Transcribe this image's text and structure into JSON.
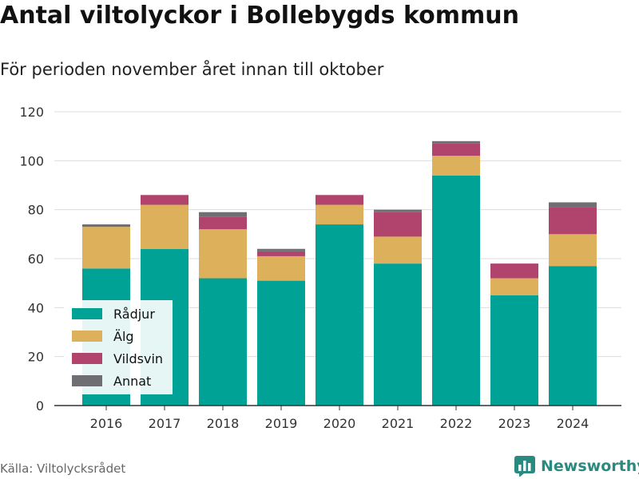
{
  "title": "Antal viltolyckor i Bollebygds kommun",
  "subtitle": "För perioden november året innan till oktober",
  "source": "Källa: Viltolycksrådet",
  "brand": {
    "name": "Newsworthy",
    "icon": "bar-chart-logo-icon"
  },
  "colors": {
    "Rådjur": "#00a296",
    "Älg": "#ddb05c",
    "Vildsvin": "#b0446d",
    "Annat": "#6e6e73"
  },
  "chart_data": {
    "type": "bar",
    "stacked": true,
    "categories": [
      "2016",
      "2017",
      "2018",
      "2019",
      "2020",
      "2021",
      "2022",
      "2023",
      "2024"
    ],
    "series": [
      {
        "name": "Rådjur",
        "values": [
          56,
          64,
          52,
          51,
          74,
          58,
          94,
          45,
          57
        ]
      },
      {
        "name": "Älg",
        "values": [
          17,
          18,
          20,
          10,
          8,
          11,
          8,
          7,
          13
        ]
      },
      {
        "name": "Vildsvin",
        "values": [
          0,
          4,
          5,
          2,
          4,
          10,
          5,
          6,
          11
        ]
      },
      {
        "name": "Annat",
        "values": [
          1,
          0,
          2,
          1,
          0,
          1,
          1,
          0,
          2
        ]
      }
    ],
    "ylim": [
      0,
      120
    ],
    "yticks": [
      0,
      20,
      40,
      60,
      80,
      100,
      120
    ],
    "xlabel": "",
    "ylabel": "",
    "grid": true,
    "legend_position": "bottom-left"
  }
}
